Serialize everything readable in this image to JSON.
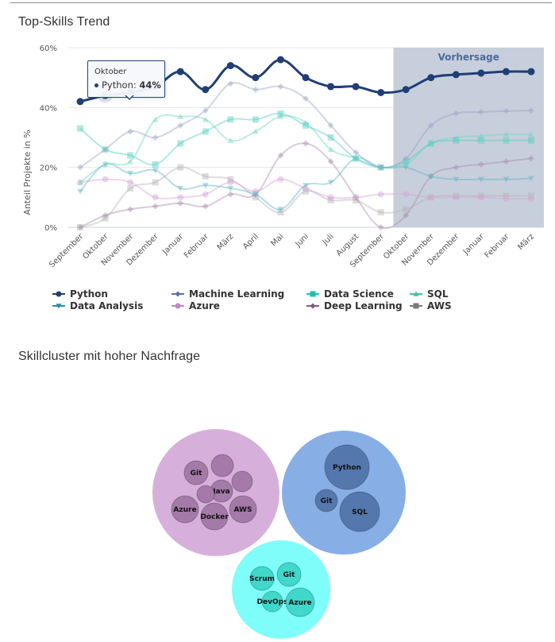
{
  "page": {
    "section1_title": "Top-Skills Trend",
    "section2_title": "Skillcluster mit hoher Nachfrage"
  },
  "tooltip": {
    "header": "Oktober",
    "series": "Python",
    "value": "44%",
    "color": "#1f3f74"
  },
  "chart_data": {
    "type": "line",
    "title": "Top-Skills Trend",
    "xlabel": "",
    "ylabel": "Anteil Projekte in %",
    "ylim": [
      0,
      60
    ],
    "yticks": [
      "0%",
      "20%",
      "40%",
      "60%"
    ],
    "ytick_values": [
      0,
      20,
      40,
      60
    ],
    "grid": true,
    "legend_position": "bottom",
    "forecast_band": {
      "label": "Vorhersage",
      "from_index": 12.5,
      "to_index": 18.5,
      "color": "#c7cfdc"
    },
    "categories": [
      "September",
      "Oktober",
      "November",
      "Dezember",
      "Januar",
      "Februar",
      "März",
      "April",
      "Mai",
      "Juni",
      "Juli",
      "August",
      "September",
      "Oktober",
      "November",
      "Dezember",
      "Januar",
      "Februar",
      "März"
    ],
    "series": [
      {
        "name": "Python",
        "color": "#1f3f74",
        "marker": "circle",
        "highlight": true,
        "values": [
          42,
          44,
          45,
          47,
          52,
          46,
          54,
          50,
          56,
          50,
          47,
          47,
          45,
          46,
          50,
          51,
          51.5,
          52,
          52
        ]
      },
      {
        "name": "Machine Learning",
        "color": "#9aa5c6",
        "marker": "diamond",
        "highlight": false,
        "values": [
          20,
          26,
          32,
          30,
          34,
          39,
          48,
          46,
          47,
          43,
          34,
          25,
          20,
          23,
          34,
          38,
          38.5,
          38.8,
          39
        ]
      },
      {
        "name": "Data Science",
        "color": "#4fcfbf",
        "marker": "square",
        "highlight": false,
        "values": [
          33,
          26,
          24,
          21,
          28,
          32,
          36,
          36,
          38,
          34,
          30,
          23,
          20,
          22,
          28,
          29,
          29,
          29,
          29
        ]
      },
      {
        "name": "SQL",
        "color": "#6ad6c2",
        "marker": "triangle",
        "highlight": false,
        "values": [
          15,
          21,
          22,
          36,
          37,
          36,
          29,
          32,
          37,
          35,
          26,
          23,
          20,
          21,
          28,
          30,
          30.5,
          31,
          31
        ]
      },
      {
        "name": "Data Analysis",
        "color": "#5fb3c5",
        "marker": "triangle-down",
        "highlight": false,
        "values": [
          12,
          21,
          18,
          19,
          13,
          14,
          13,
          11,
          6,
          14,
          15,
          23,
          20,
          20,
          17,
          16,
          16,
          16,
          16.3
        ]
      },
      {
        "name": "Azure",
        "color": "#d7a5d8",
        "marker": "circle",
        "highlight": false,
        "values": [
          15,
          16,
          15,
          10,
          10,
          11,
          15,
          12,
          16,
          13,
          10,
          10,
          11,
          11,
          10,
          10,
          10,
          9.5,
          9.5
        ]
      },
      {
        "name": "Deep Learning",
        "color": "#a98bb0",
        "marker": "diamond",
        "highlight": false,
        "values": [
          0,
          4,
          6,
          7,
          8,
          7,
          11,
          11,
          24,
          28,
          22,
          10,
          0,
          4,
          17,
          20,
          21,
          22,
          23
        ]
      },
      {
        "name": "AWS",
        "color": "#b3b3b3",
        "marker": "square",
        "highlight": false,
        "values": [
          0,
          3,
          13,
          15,
          20,
          17,
          16,
          10,
          5,
          12,
          9,
          9,
          5,
          6,
          10,
          10.5,
          10.5,
          10.5,
          10.5
        ]
      }
    ]
  },
  "legend": {
    "items": [
      {
        "label": "Python",
        "color": "#1f3f74",
        "marker": "circle"
      },
      {
        "label": "Machine Learning",
        "color": "#5a74a6",
        "marker": "diamond"
      },
      {
        "label": "Data Science",
        "color": "#1fbfae",
        "marker": "square"
      },
      {
        "label": "SQL",
        "color": "#3fbfaa",
        "marker": "triangle"
      },
      {
        "label": "Data Analysis",
        "color": "#2a8ea5",
        "marker": "triangle-down"
      },
      {
        "label": "Azure",
        "color": "#c187c6",
        "marker": "circle"
      },
      {
        "label": "Deep Learning",
        "color": "#7d5a86",
        "marker": "diamond"
      },
      {
        "label": "AWS",
        "color": "#7a7a7a",
        "marker": "square"
      }
    ]
  },
  "clusters": [
    {
      "name": "cluster-1",
      "color": "#d6b0da",
      "inner_color": "#a47aa8",
      "skills": [
        "Git",
        "",
        "",
        "Java",
        "",
        "Azure",
        "Docker",
        "AWS"
      ]
    },
    {
      "name": "cluster-2",
      "color": "#88aee6",
      "inner_color": "#5478ad",
      "skills": [
        "Python",
        "Git",
        "SQL"
      ]
    },
    {
      "name": "cluster-3",
      "color": "#7ffdfb",
      "inner_color": "#3fd8cb",
      "skills": [
        "Scrum",
        "Git",
        "DevOps",
        "Azure"
      ]
    }
  ]
}
